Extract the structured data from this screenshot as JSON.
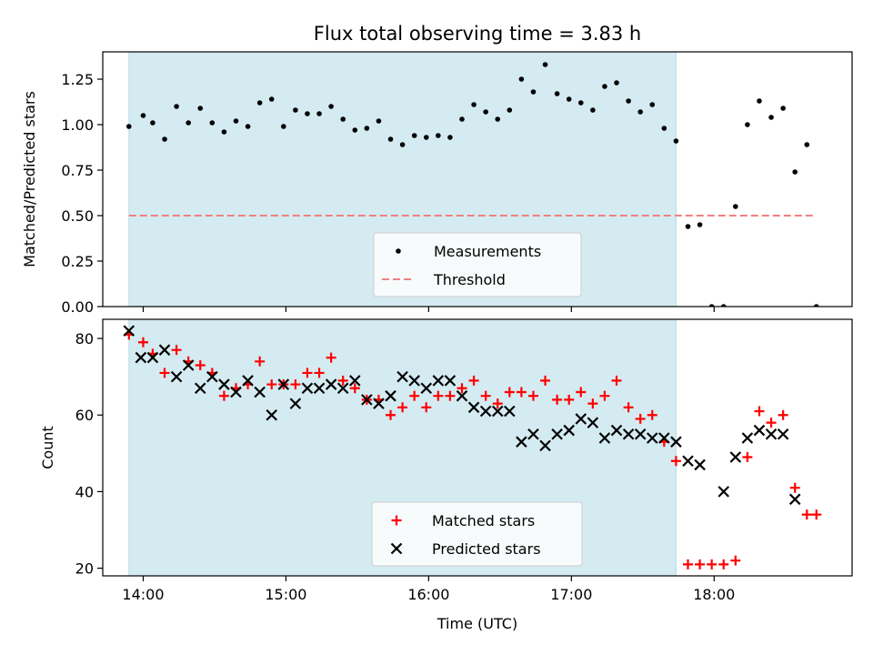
{
  "chart_data": [
    {
      "type": "scatter",
      "title": "Flux total observing time = 3.83 h",
      "ylabel": "Matched/Predicted stars",
      "xlabel": "",
      "xlim": [
        "13:43",
        "18:58"
      ],
      "ylim": [
        0,
        1.4
      ],
      "yticks": [
        0.0,
        0.25,
        0.5,
        0.75,
        1.0,
        1.25
      ],
      "yticklabels": [
        "0.00",
        "0.25",
        "0.50",
        "0.75",
        "1.00",
        "1.25"
      ],
      "shaded_region": {
        "x0": "13:54",
        "x1": "17:44",
        "color": "#d4ebf1"
      },
      "threshold": {
        "name": "Threshold",
        "value": 0.5,
        "x0": "13:54",
        "x1": "18:43",
        "color": "#f08080"
      },
      "legend": [
        "Measurements",
        "Threshold"
      ],
      "legend_position": "lower center",
      "series": [
        {
          "name": "Measurements",
          "color": "#000000",
          "points": [
            [
              "13:54",
              0.99
            ],
            [
              "14:00",
              1.05
            ],
            [
              "14:04",
              1.01
            ],
            [
              "14:09",
              0.92
            ],
            [
              "14:14",
              1.1
            ],
            [
              "14:19",
              1.01
            ],
            [
              "14:24",
              1.09
            ],
            [
              "14:29",
              1.01
            ],
            [
              "14:34",
              0.96
            ],
            [
              "14:39",
              1.02
            ],
            [
              "14:44",
              0.99
            ],
            [
              "14:49",
              1.12
            ],
            [
              "14:54",
              1.14
            ],
            [
              "14:59",
              0.99
            ],
            [
              "15:04",
              1.08
            ],
            [
              "15:09",
              1.06
            ],
            [
              "15:14",
              1.06
            ],
            [
              "15:19",
              1.1
            ],
            [
              "15:24",
              1.03
            ],
            [
              "15:29",
              0.97
            ],
            [
              "15:34",
              0.98
            ],
            [
              "15:39",
              1.02
            ],
            [
              "15:44",
              0.92
            ],
            [
              "15:49",
              0.89
            ],
            [
              "15:54",
              0.94
            ],
            [
              "15:59",
              0.93
            ],
            [
              "16:04",
              0.94
            ],
            [
              "16:09",
              0.93
            ],
            [
              "16:14",
              1.03
            ],
            [
              "16:19",
              1.11
            ],
            [
              "16:24",
              1.07
            ],
            [
              "16:29",
              1.03
            ],
            [
              "16:34",
              1.08
            ],
            [
              "16:39",
              1.25
            ],
            [
              "16:44",
              1.18
            ],
            [
              "16:49",
              1.33
            ],
            [
              "16:54",
              1.17
            ],
            [
              "16:59",
              1.14
            ],
            [
              "17:04",
              1.12
            ],
            [
              "17:09",
              1.08
            ],
            [
              "17:14",
              1.21
            ],
            [
              "17:19",
              1.23
            ],
            [
              "17:24",
              1.13
            ],
            [
              "17:29",
              1.07
            ],
            [
              "17:34",
              1.11
            ],
            [
              "17:39",
              0.98
            ],
            [
              "17:44",
              0.91
            ],
            [
              "17:49",
              0.44
            ],
            [
              "17:54",
              0.45
            ],
            [
              "17:59",
              0.0
            ],
            [
              "18:04",
              0.0
            ],
            [
              "18:09",
              0.55
            ],
            [
              "18:14",
              1.0
            ],
            [
              "18:19",
              1.13
            ],
            [
              "18:24",
              1.04
            ],
            [
              "18:29",
              1.09
            ],
            [
              "18:34",
              0.74
            ],
            [
              "18:39",
              0.89
            ],
            [
              "18:43",
              0.0
            ]
          ]
        }
      ]
    },
    {
      "type": "scatter",
      "title": "",
      "xlabel": "Time (UTC)",
      "ylabel": "Count",
      "xlim": [
        "13:43",
        "18:58"
      ],
      "ylim": [
        18,
        85
      ],
      "xticks": [
        "14:00",
        "15:00",
        "16:00",
        "17:00",
        "18:00"
      ],
      "yticks": [
        20,
        40,
        60,
        80
      ],
      "shaded_region": {
        "x0": "13:54",
        "x1": "17:44",
        "color": "#d4ebf1"
      },
      "legend": [
        "Matched stars",
        "Predicted stars"
      ],
      "legend_position": "lower center",
      "series": [
        {
          "name": "Matched stars",
          "marker": "plus",
          "color": "#ff0000",
          "points": [
            [
              "13:54",
              81
            ],
            [
              "14:00",
              79
            ],
            [
              "14:04",
              76
            ],
            [
              "14:09",
              71
            ],
            [
              "14:14",
              77
            ],
            [
              "14:19",
              74
            ],
            [
              "14:24",
              73
            ],
            [
              "14:29",
              71
            ],
            [
              "14:34",
              65
            ],
            [
              "14:39",
              67
            ],
            [
              "14:44",
              68
            ],
            [
              "14:49",
              74
            ],
            [
              "14:54",
              68
            ],
            [
              "14:59",
              68
            ],
            [
              "15:04",
              68
            ],
            [
              "15:09",
              71
            ],
            [
              "15:14",
              71
            ],
            [
              "15:19",
              75
            ],
            [
              "15:24",
              69
            ],
            [
              "15:29",
              67
            ],
            [
              "15:34",
              64
            ],
            [
              "15:39",
              64
            ],
            [
              "15:44",
              60
            ],
            [
              "15:49",
              62
            ],
            [
              "15:54",
              65
            ],
            [
              "15:59",
              62
            ],
            [
              "16:04",
              65
            ],
            [
              "16:09",
              65
            ],
            [
              "16:14",
              67
            ],
            [
              "16:19",
              69
            ],
            [
              "16:24",
              65
            ],
            [
              "16:29",
              63
            ],
            [
              "16:34",
              66
            ],
            [
              "16:39",
              66
            ],
            [
              "16:44",
              65
            ],
            [
              "16:49",
              69
            ],
            [
              "16:54",
              64
            ],
            [
              "16:59",
              64
            ],
            [
              "17:04",
              66
            ],
            [
              "17:09",
              63
            ],
            [
              "17:14",
              65
            ],
            [
              "17:19",
              69
            ],
            [
              "17:24",
              62
            ],
            [
              "17:29",
              59
            ],
            [
              "17:34",
              60
            ],
            [
              "17:39",
              53
            ],
            [
              "17:44",
              48
            ],
            [
              "17:49",
              21
            ],
            [
              "17:54",
              21
            ],
            [
              "17:59",
              21
            ],
            [
              "18:04",
              21
            ],
            [
              "18:09",
              22
            ],
            [
              "18:14",
              49
            ],
            [
              "18:19",
              61
            ],
            [
              "18:24",
              58
            ],
            [
              "18:29",
              60
            ],
            [
              "18:34",
              41
            ],
            [
              "18:39",
              34
            ],
            [
              "18:43",
              34
            ]
          ]
        },
        {
          "name": "Predicted stars",
          "marker": "x",
          "color": "#000000",
          "points": [
            [
              "13:54",
              82
            ],
            [
              "13:59",
              75
            ],
            [
              "14:04",
              75
            ],
            [
              "14:09",
              77
            ],
            [
              "14:14",
              70
            ],
            [
              "14:19",
              73
            ],
            [
              "14:24",
              67
            ],
            [
              "14:29",
              70
            ],
            [
              "14:34",
              68
            ],
            [
              "14:39",
              66
            ],
            [
              "14:44",
              69
            ],
            [
              "14:49",
              66
            ],
            [
              "14:54",
              60
            ],
            [
              "14:59",
              68
            ],
            [
              "15:04",
              63
            ],
            [
              "15:09",
              67
            ],
            [
              "15:14",
              67
            ],
            [
              "15:19",
              68
            ],
            [
              "15:24",
              67
            ],
            [
              "15:29",
              69
            ],
            [
              "15:34",
              64
            ],
            [
              "15:39",
              63
            ],
            [
              "15:44",
              65
            ],
            [
              "15:49",
              70
            ],
            [
              "15:54",
              69
            ],
            [
              "15:59",
              67
            ],
            [
              "16:04",
              69
            ],
            [
              "16:09",
              69
            ],
            [
              "16:14",
              65
            ],
            [
              "16:19",
              62
            ],
            [
              "16:24",
              61
            ],
            [
              "16:29",
              61
            ],
            [
              "16:34",
              61
            ],
            [
              "16:39",
              53
            ],
            [
              "16:44",
              55
            ],
            [
              "16:49",
              52
            ],
            [
              "16:54",
              55
            ],
            [
              "16:59",
              56
            ],
            [
              "17:04",
              59
            ],
            [
              "17:09",
              58
            ],
            [
              "17:14",
              54
            ],
            [
              "17:19",
              56
            ],
            [
              "17:24",
              55
            ],
            [
              "17:29",
              55
            ],
            [
              "17:34",
              54
            ],
            [
              "17:39",
              54
            ],
            [
              "17:44",
              53
            ],
            [
              "17:49",
              48
            ],
            [
              "17:54",
              47
            ],
            [
              "18:04",
              40
            ],
            [
              "18:09",
              49
            ],
            [
              "18:14",
              54
            ],
            [
              "18:19",
              56
            ],
            [
              "18:24",
              55
            ],
            [
              "18:29",
              55
            ],
            [
              "18:34",
              38
            ]
          ]
        }
      ]
    }
  ]
}
